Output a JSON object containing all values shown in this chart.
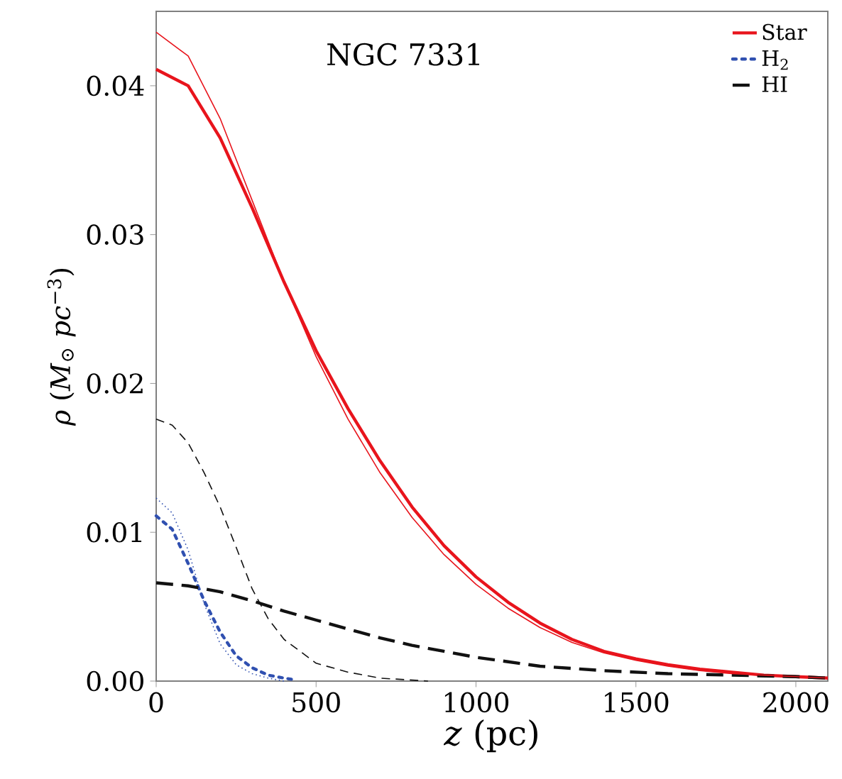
{
  "chart_data": {
    "type": "line",
    "xlabel": "*z* (pc)",
    "ylabel": "*ρ* (*M*$_{⊙}$ *pc*$^{−3}$)",
    "annotations": [
      "NGC 7331"
    ],
    "xlim": [
      0,
      2100
    ],
    "ylim": [
      0,
      0.045
    ],
    "xticks": [
      0,
      500,
      1000,
      1500,
      2000
    ],
    "yticks": [
      {
        "value": 0,
        "label": "0.00"
      },
      {
        "value": 0.01,
        "label": "0.01"
      },
      {
        "value": 0.02,
        "label": "0.02"
      },
      {
        "value": 0.03,
        "label": "0.03"
      },
      {
        "value": 0.04,
        "label": "0.04"
      }
    ],
    "grid": false,
    "legend": "top right",
    "series": [
      {
        "name": "Star",
        "color": "#e8141c",
        "line_style": "solid",
        "x": [
          0,
          100,
          200,
          300,
          400,
          500,
          600,
          700,
          800,
          900,
          1000,
          1100,
          1200,
          1300,
          1400,
          1500,
          1600,
          1700,
          1800,
          1900,
          2000,
          2100
        ],
        "values": [
          0.0411,
          0.04,
          0.0365,
          0.0318,
          0.0268,
          0.0222,
          0.0183,
          0.0148,
          0.0117,
          0.0091,
          0.007,
          0.0053,
          0.0039,
          0.0028,
          0.002,
          0.0015,
          0.0011,
          0.0008,
          0.0006,
          0.0004,
          0.0003,
          0.0002
        ]
      },
      {
        "name": "H$_{2}$",
        "color": "#3050b0",
        "line_style": "dotted",
        "x": [
          0,
          50,
          100,
          150,
          200,
          250,
          300,
          350,
          400,
          430
        ],
        "values": [
          0.0111,
          0.0102,
          0.0079,
          0.0054,
          0.0033,
          0.0017,
          0.0009,
          0.0004,
          0.0002,
          0.0001
        ]
      },
      {
        "name": "HI",
        "color": "#111111",
        "line_style": "dashed",
        "x": [
          0,
          100,
          200,
          300,
          400,
          500,
          600,
          700,
          800,
          900,
          1000,
          1200,
          1400,
          1600,
          1800,
          2000,
          2100
        ],
        "values": [
          0.0066,
          0.0064,
          0.006,
          0.0054,
          0.0047,
          0.0041,
          0.0035,
          0.0029,
          0.0024,
          0.002,
          0.0016,
          0.001,
          0.0007,
          0.0005,
          0.0004,
          0.0003,
          0.0002
        ]
      },
      {
        "color": "#e8141c",
        "line_style": "solid",
        "x": [
          0,
          100,
          200,
          300,
          400,
          500,
          600,
          700,
          800,
          900,
          1000,
          1100,
          1200,
          1300,
          1400,
          1500,
          1600,
          1700,
          1800,
          1900,
          2000,
          2100
        ],
        "values": [
          0.0436,
          0.042,
          0.0378,
          0.0323,
          0.0268,
          0.0218,
          0.0176,
          0.014,
          0.011,
          0.0085,
          0.0065,
          0.0049,
          0.0036,
          0.0026,
          0.0019,
          0.0014,
          0.001,
          0.0007,
          0.0005,
          0.0004,
          0.0003,
          0.0002
        ]
      },
      {
        "color": "#3050b0",
        "line_style": "dotted",
        "x": [
          0,
          50,
          100,
          150,
          200,
          250,
          300,
          350,
          400
        ],
        "values": [
          0.0123,
          0.0113,
          0.0088,
          0.0052,
          0.0025,
          0.0011,
          0.0005,
          0.0002,
          0.0
        ]
      },
      {
        "color": "#111111",
        "line_style": "dashed",
        "x": [
          0,
          50,
          100,
          150,
          200,
          250,
          300,
          350,
          400,
          500,
          600,
          700,
          850
        ],
        "values": [
          0.0176,
          0.0172,
          0.016,
          0.014,
          0.0117,
          0.009,
          0.0062,
          0.0042,
          0.0028,
          0.0012,
          0.0006,
          0.0002,
          0.0
        ]
      }
    ]
  }
}
